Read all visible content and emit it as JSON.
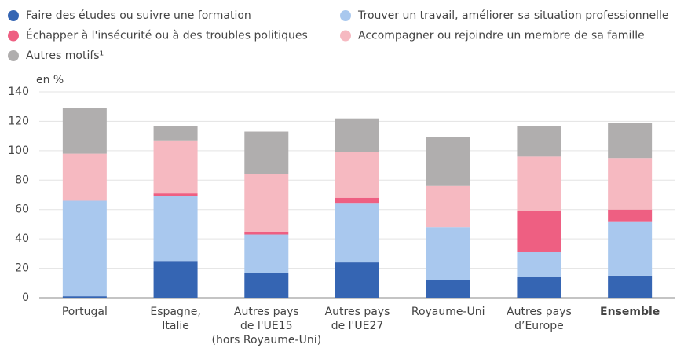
{
  "chart_data": {
    "type": "stacked_bar",
    "y_unit_label": "en %",
    "categories": [
      "Portugal",
      "Espagne,\nItalie",
      "Autres pays\nde l'UE15\n(hors Royaume-Uni)",
      "Autres pays\nde l'UE27",
      "Royaume-Uni",
      "Autres pays\nd’Europe",
      "Ensemble"
    ],
    "bold_categories": [
      6
    ],
    "series": [
      {
        "name": "Faire des études ou suivre une formation",
        "color": "#3565b3",
        "values": [
          1,
          25,
          17,
          24,
          12,
          14,
          15
        ]
      },
      {
        "name": "Trouver un travail, améliorer sa situation professionnelle",
        "color": "#a9c8ee",
        "values": [
          65,
          44,
          26,
          40,
          36,
          17,
          37
        ]
      },
      {
        "name": "Échapper à l'insécurité ou à des troubles politiques",
        "color": "#ee5f82",
        "values": [
          0,
          2,
          2,
          4,
          0,
          28,
          8
        ]
      },
      {
        "name": "Accompagner ou rejoindre un membre de sa famille",
        "color": "#f6b9c1",
        "values": [
          32,
          36,
          39,
          31,
          28,
          37,
          35
        ]
      },
      {
        "name": "Autres motifs¹",
        "color": "#b0aeae",
        "values": [
          31,
          10,
          29,
          23,
          33,
          21,
          24
        ]
      }
    ],
    "ylim": [
      0,
      140
    ],
    "yticks": [
      0,
      20,
      40,
      60,
      80,
      100,
      120,
      140
    ],
    "grid": true
  }
}
